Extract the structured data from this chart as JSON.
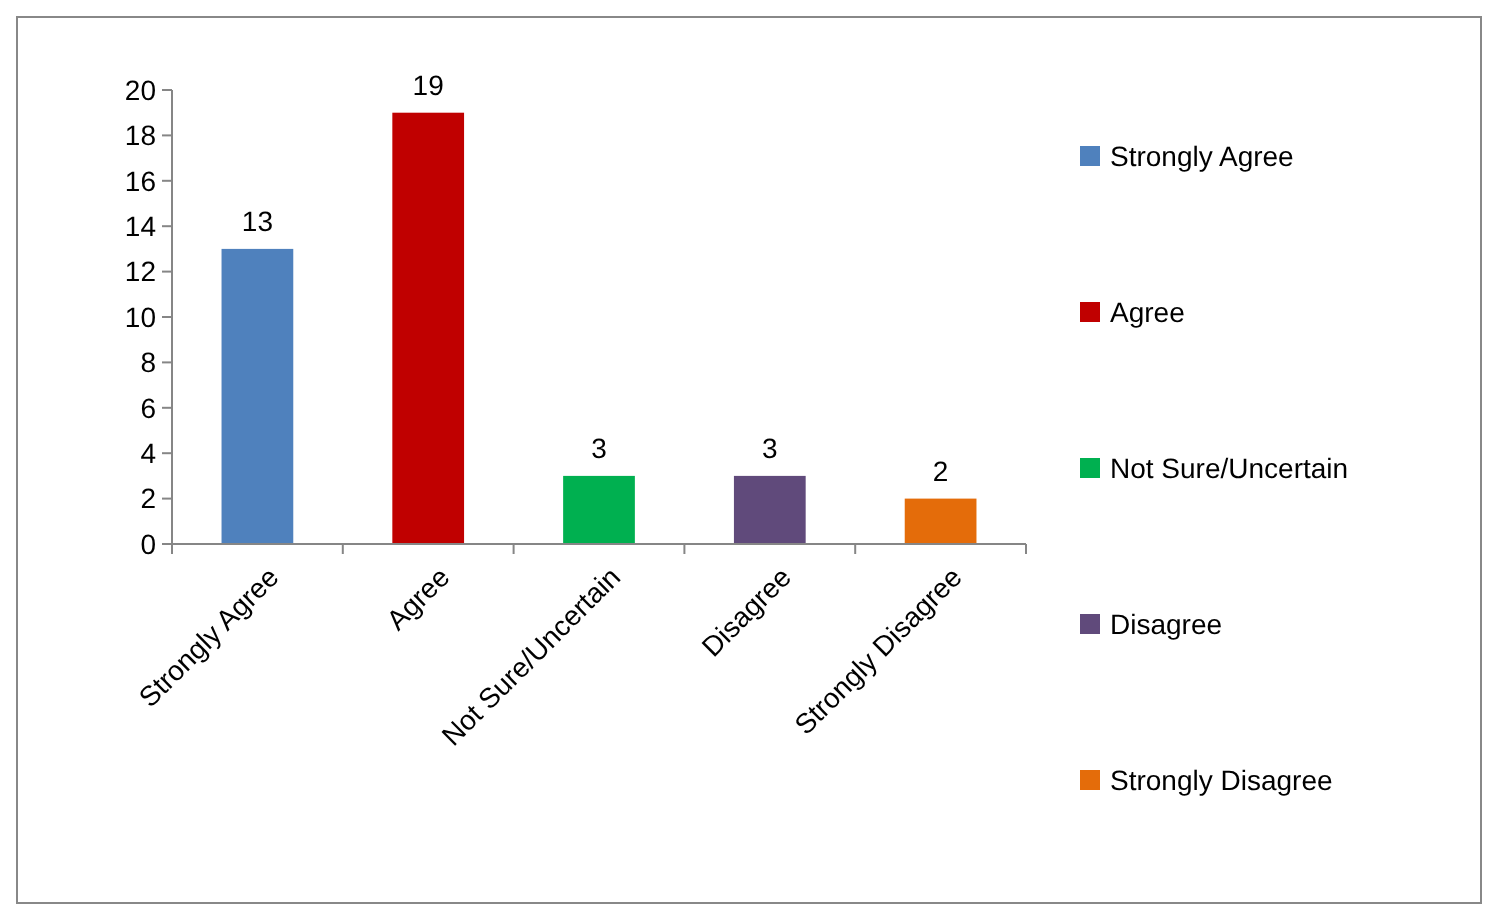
{
  "chart_data": {
    "type": "bar",
    "categories": [
      "Strongly Agree",
      "Agree",
      "Not Sure/Uncertain",
      "Disagree",
      "Strongly Disagree"
    ],
    "series": [
      {
        "name": "Strongly Agree",
        "color": "#4f81bd",
        "values": [
          13,
          null,
          null,
          null,
          null
        ]
      },
      {
        "name": "Agree",
        "color": "#c00000",
        "values": [
          null,
          19,
          null,
          null,
          null
        ]
      },
      {
        "name": "Not Sure/Uncertain",
        "color": "#00b050",
        "values": [
          null,
          null,
          3,
          null,
          null
        ]
      },
      {
        "name": "Disagree",
        "color": "#604a7b",
        "values": [
          null,
          null,
          null,
          3,
          null
        ]
      },
      {
        "name": "Strongly Disagree",
        "color": "#e46c0a",
        "values": [
          null,
          null,
          null,
          null,
          2
        ]
      }
    ],
    "ylim": [
      0,
      20
    ],
    "yticks": [
      0,
      2,
      4,
      6,
      8,
      10,
      12,
      14,
      16,
      18,
      20
    ],
    "legend": "right",
    "data_labels": true
  }
}
